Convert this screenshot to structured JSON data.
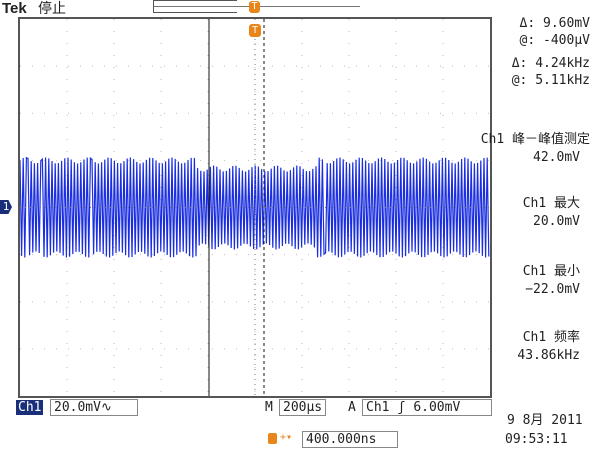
{
  "header": {
    "brand": "Tek",
    "status": "停止"
  },
  "cursors": {
    "delta_v": "Δ:  9.60mV",
    "at_v": "@:  -400μV",
    "delta_f": "Δ:  4.24kHz",
    "at_f": "@:  5.11kHz"
  },
  "measurements": [
    {
      "label": "Ch1 峰－峰值测定",
      "value": "42.0mV"
    },
    {
      "label": "Ch1 最大",
      "value": "20.0mV"
    },
    {
      "label": "Ch1 最小",
      "value": "−22.0mV"
    },
    {
      "label": "Ch1 频率",
      "value": "43.86kHz"
    }
  ],
  "bottom": {
    "channel": "Ch1",
    "scale": "20.0mV∿",
    "m_label": "M",
    "timebase": "200μs",
    "a_label": "A",
    "trig_src": "Ch1",
    "trig_slope": "ʃ",
    "trig_level": "6.00mV",
    "trig_pos": "400.000ns",
    "date": "9 8月  2011",
    "time": "09:53:11"
  },
  "markers": {
    "channel_marker": "1",
    "trigger_marker": "T"
  },
  "colors": {
    "waveform": "#1a2ee0",
    "trigger": "#e8861a",
    "channel_box": "#1a2f7a"
  }
}
